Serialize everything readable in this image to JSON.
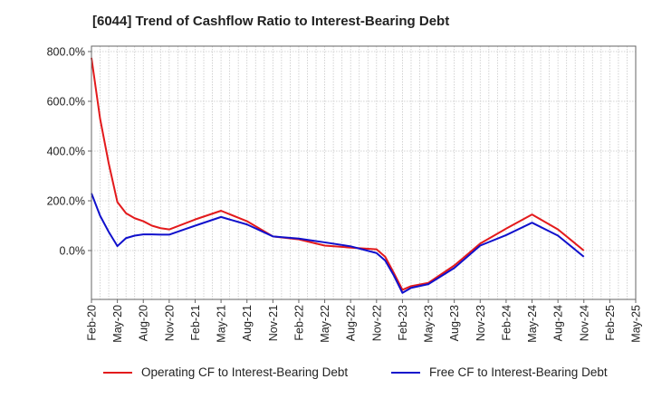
{
  "chart_data": {
    "type": "line",
    "title": "[6044]  Trend of Cashflow Ratio to Interest-Bearing Debt",
    "xlabel": "",
    "ylabel": "",
    "ylim": [
      -190,
      820
    ],
    "yticks": [
      0,
      200,
      400,
      600,
      800
    ],
    "ytick_labels": [
      "0.0%",
      "200.0%",
      "400.0%",
      "600.0%",
      "800.0%"
    ],
    "x_tick_labels": [
      "Feb-20",
      "May-20",
      "Aug-20",
      "Nov-20",
      "Feb-21",
      "May-21",
      "Aug-21",
      "Nov-21",
      "Feb-22",
      "May-22",
      "Aug-22",
      "Nov-22",
      "Feb-23",
      "May-23",
      "Aug-23",
      "Nov-23",
      "Feb-24",
      "May-24",
      "Aug-24",
      "Nov-24",
      "Feb-25",
      "May-25"
    ],
    "x_months": [
      "Feb-20",
      "Mar-20",
      "Apr-20",
      "May-20",
      "Jun-20",
      "Jul-20",
      "Aug-20",
      "Sep-20",
      "Oct-20",
      "Nov-20",
      "Dec-20",
      "Jan-21",
      "Feb-21",
      "Mar-21",
      "Apr-21",
      "May-21",
      "Jun-21",
      "Jul-21",
      "Aug-21",
      "Sep-21",
      "Oct-21",
      "Nov-21",
      "Dec-21",
      "Jan-22",
      "Feb-22",
      "Mar-22",
      "Apr-22",
      "May-22",
      "Jun-22",
      "Jul-22",
      "Aug-22",
      "Sep-22",
      "Oct-22",
      "Nov-22",
      "Dec-22",
      "Jan-23",
      "Feb-23",
      "Mar-23",
      "Apr-23",
      "May-23",
      "Jun-23",
      "Jul-23",
      "Aug-23",
      "Sep-23",
      "Oct-23",
      "Nov-23",
      "Dec-23",
      "Jan-24",
      "Feb-24",
      "Mar-24",
      "Apr-24",
      "May-24",
      "Jun-24",
      "Jul-24",
      "Aug-24",
      "Sep-24",
      "Oct-24",
      "Nov-24",
      "Dec-24",
      "Jan-25",
      "Feb-25",
      "Mar-25",
      "Apr-25",
      "May-25"
    ],
    "grid": true,
    "legend_position": "bottom",
    "series": [
      {
        "name": "Operating CF to Interest-Bearing Debt",
        "color": "#e31a1c",
        "x": [
          "Feb-20",
          "Mar-20",
          "Apr-20",
          "May-20",
          "Jun-20",
          "Jul-20",
          "Aug-20",
          "Sep-20",
          "Oct-20",
          "Nov-20",
          "Feb-21",
          "May-21",
          "Aug-21",
          "Nov-21",
          "Feb-22",
          "May-22",
          "Aug-22",
          "Nov-22",
          "Dec-22",
          "Jan-23",
          "Feb-23",
          "Mar-23",
          "May-23",
          "Aug-23",
          "Nov-23",
          "Feb-24",
          "May-24",
          "Aug-24",
          "Nov-24"
        ],
        "values": [
          775,
          530,
          350,
          195,
          150,
          130,
          118,
          100,
          90,
          85,
          125,
          160,
          118,
          57,
          45,
          20,
          12,
          5,
          -25,
          -90,
          -158,
          -143,
          -130,
          -60,
          28,
          88,
          145,
          85,
          0
        ]
      },
      {
        "name": "Free CF to Interest-Bearing Debt",
        "color": "#1010cc",
        "x": [
          "Feb-20",
          "Mar-20",
          "Apr-20",
          "May-20",
          "Jun-20",
          "Jul-20",
          "Aug-20",
          "Sep-20",
          "Oct-20",
          "Nov-20",
          "Feb-21",
          "May-21",
          "Aug-21",
          "Nov-21",
          "Feb-22",
          "May-22",
          "Aug-22",
          "Nov-22",
          "Dec-22",
          "Jan-23",
          "Feb-23",
          "Mar-23",
          "May-23",
          "Aug-23",
          "Nov-23",
          "Feb-24",
          "May-24",
          "Aug-24",
          "Nov-24"
        ],
        "values": [
          230,
          140,
          75,
          18,
          50,
          60,
          65,
          65,
          64,
          64,
          100,
          135,
          105,
          57,
          48,
          33,
          17,
          -10,
          -40,
          -100,
          -170,
          -150,
          -135,
          -70,
          20,
          62,
          112,
          60,
          -25
        ]
      }
    ]
  }
}
